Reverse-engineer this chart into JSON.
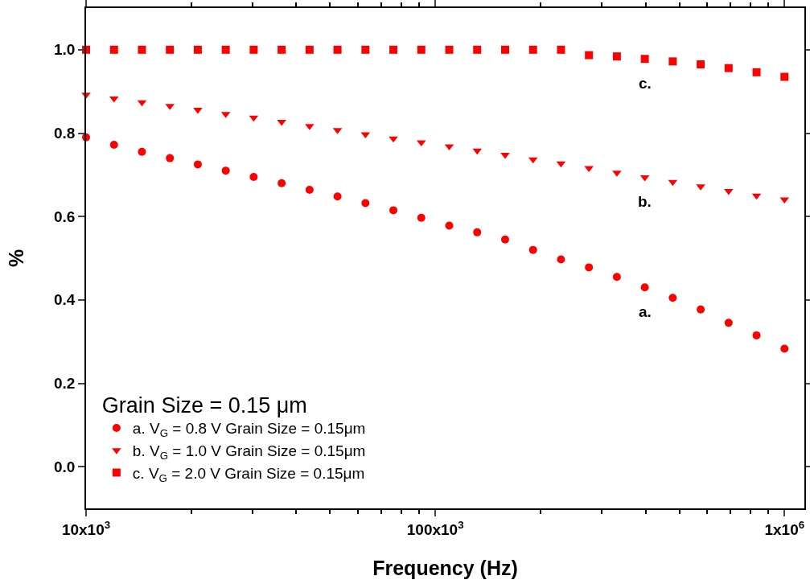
{
  "chart_data": {
    "type": "scatter",
    "xlabel": "Frequency (Hz)",
    "ylabel": "%",
    "legend_title": "Grain Size = 0.15 μm",
    "log": "x",
    "x": [
      10000,
      12023,
      14454,
      17378,
      20893,
      25119,
      30200,
      36308,
      43652,
      52481,
      63096,
      75858,
      91201,
      109648,
      131826,
      158489,
      190546,
      229087,
      275423,
      331131,
      398107,
      478630,
      575440,
      691831,
      831764,
      1000000
    ],
    "series": [
      {
        "name": "a. V$_{G}$ = 0.8 V Grain Size = 0.15μm",
        "color": "#ff0000",
        "marker": "circle",
        "values": [
          0.79,
          0.772,
          0.755,
          0.74,
          0.725,
          0.71,
          0.695,
          0.68,
          0.664,
          0.648,
          0.632,
          0.615,
          0.597,
          0.578,
          0.562,
          0.545,
          0.52,
          0.497,
          0.478,
          0.455,
          0.43,
          0.405,
          0.377,
          0.345,
          0.315,
          0.283
        ]
      },
      {
        "name": "b. V$_{G}$ = 1.0 V Grain Size = 0.15μm",
        "color": "#ff0000",
        "marker": "triangle",
        "values": [
          0.892,
          0.883,
          0.874,
          0.865,
          0.856,
          0.846,
          0.837,
          0.827,
          0.817,
          0.807,
          0.797,
          0.787,
          0.778,
          0.768,
          0.758,
          0.748,
          0.737,
          0.727,
          0.716,
          0.705,
          0.694,
          0.683,
          0.672,
          0.661,
          0.65,
          0.641
        ]
      },
      {
        "name": "c. V$_{G}$ = 2.0 V Grain Size = 0.15μm",
        "color": "#ff0000",
        "marker": "square",
        "values": [
          1.0,
          1.0,
          1.0,
          1.0,
          1.0,
          1.0,
          1.0,
          1.0,
          1.0,
          1.0,
          1.0,
          1.0,
          1.0,
          1.0,
          1.0,
          1.0,
          1.0,
          1.0,
          0.987,
          0.984,
          0.978,
          0.972,
          0.965,
          0.956,
          0.946,
          0.935
        ]
      }
    ],
    "xlim": [
      10000,
      1140000
    ],
    "xticks": [
      {
        "value": 10000,
        "label": "10x10$^{3}$"
      },
      {
        "value": 100000,
        "label": "100x10$^{3}$"
      },
      {
        "value": 1000000,
        "label": "1x10$^{6}$"
      }
    ],
    "ylim": [
      -0.1,
      1.1
    ],
    "yticks": [
      {
        "value": 0,
        "label": "0.0"
      },
      0.2,
      0.4,
      0.6,
      0.8,
      {
        "value": 1,
        "label": "1.0"
      }
    ],
    "grid": false,
    "legend": "bottom left",
    "annotations": [
      "a.",
      "b.",
      "c."
    ]
  }
}
